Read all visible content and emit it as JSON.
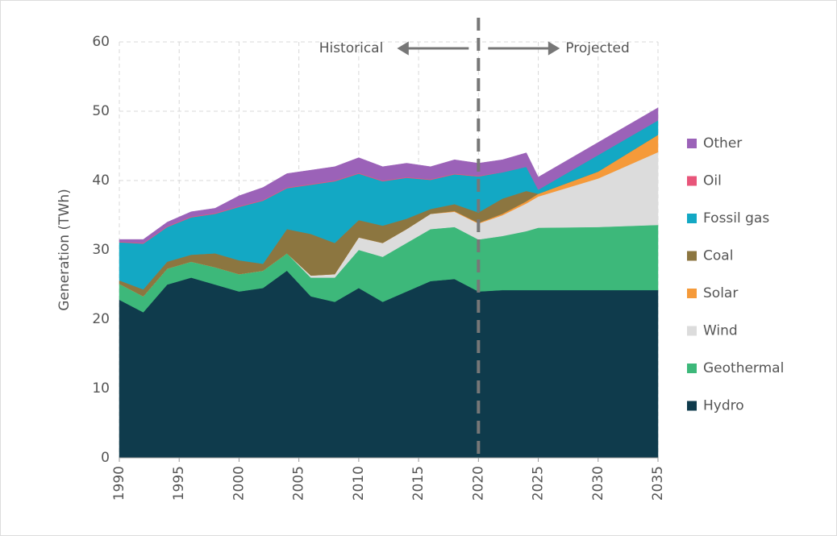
{
  "chart_data": {
    "type": "stacked_area",
    "y_label": "Generation (TWh)",
    "annotations": [
      "Historical",
      "Projected"
    ],
    "divider": 2020,
    "x": [
      1990,
      1992,
      1994,
      1996,
      1998,
      2000,
      2002,
      2004,
      2006,
      2008,
      2010,
      2012,
      2014,
      2016,
      2018,
      2020,
      2022,
      2024,
      2025,
      2030,
      2035
    ],
    "xlim": [
      1990,
      2035
    ],
    "xticks": [
      1990,
      1995,
      2000,
      2005,
      2010,
      2015,
      2020,
      2025,
      2030,
      2035
    ],
    "ylim": [
      0,
      60
    ],
    "yticks": [
      0,
      10,
      20,
      30,
      40,
      50,
      60
    ],
    "grid": true,
    "series": [
      {
        "name": "Hydro",
        "color": "#0f3b4c",
        "values": [
          22.8,
          21,
          25,
          26,
          25,
          24,
          24.5,
          27,
          23.3,
          22.5,
          24.5,
          22.5,
          24,
          25.5,
          25.8,
          24,
          24.2,
          24.2,
          24.2,
          24.2,
          24.2
        ]
      },
      {
        "name": "Geothermal",
        "color": "#3db87a",
        "values": [
          2.3,
          2.3,
          2.3,
          2.3,
          2.5,
          2.5,
          2.5,
          2.5,
          2.7,
          3.5,
          5.5,
          6.5,
          7,
          7.5,
          7.5,
          7.5,
          7.8,
          8.5,
          9,
          9.1,
          9.4
        ]
      },
      {
        "name": "Wind",
        "color": "#dcdcdc",
        "values": [
          0,
          0,
          0,
          0,
          0,
          0,
          0,
          0,
          0.3,
          0.5,
          1.8,
          2,
          2,
          2.2,
          2.2,
          2.3,
          3,
          4,
          4.5,
          7,
          10.5
        ]
      },
      {
        "name": "Solar",
        "color": "#f59a3a",
        "values": [
          0,
          0,
          0,
          0,
          0,
          0,
          0,
          0,
          0,
          0,
          0,
          0,
          0,
          0,
          0.1,
          0.1,
          0.2,
          0.3,
          0.4,
          1,
          2.5
        ]
      },
      {
        "name": "Coal",
        "color": "#8c7640",
        "values": [
          0.5,
          1,
          1,
          1,
          2,
          2,
          1,
          3.5,
          6,
          4.5,
          2.5,
          2.5,
          1.5,
          0.7,
          1,
          1.5,
          2.2,
          1.5,
          0,
          0,
          0
        ]
      },
      {
        "name": "Fossil gas",
        "color": "#13a8c4",
        "values": [
          5.5,
          6.6,
          5,
          5.4,
          5.7,
          7.7,
          9.1,
          5.9,
          7.1,
          8.9,
          6.7,
          6.4,
          5.9,
          4.2,
          4.3,
          5.2,
          3.8,
          3.5,
          0.6,
          2.4,
          2.1
        ]
      },
      {
        "name": "Oil",
        "color": "#e8557a",
        "values": [
          0.1,
          0.1,
          0.1,
          0.1,
          0.1,
          0.1,
          0.1,
          0.1,
          0.1,
          0.1,
          0.1,
          0.1,
          0.1,
          0.1,
          0.1,
          0.1,
          0,
          0,
          0,
          0,
          0
        ]
      },
      {
        "name": "Other",
        "color": "#9b62b8",
        "values": [
          0.3,
          0.5,
          0.6,
          0.7,
          0.7,
          1.5,
          1.8,
          2,
          2,
          2,
          2.2,
          2,
          2,
          1.8,
          2,
          1.8,
          1.8,
          2,
          1.8,
          1.8,
          1.8
        ]
      }
    ]
  }
}
